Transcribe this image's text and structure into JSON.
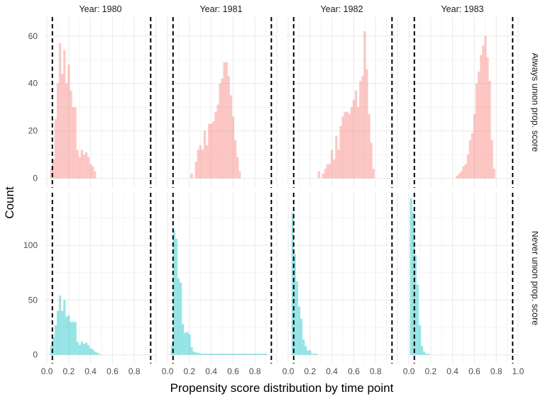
{
  "chart_data": {
    "type": "histogram",
    "xlabel": "Propensity score distribution by time point",
    "ylabel": "Count",
    "xlim": [
      -0.02,
      1.0
    ],
    "x_ticks": [
      0.0,
      0.2,
      0.4,
      0.6,
      0.8,
      1.0
    ],
    "x_tick_labels": [
      "0.0",
      "0.2",
      "0.4",
      "0.6",
      "0.8",
      "0.0",
      "0.2",
      "0.4",
      "0.6",
      "0.8",
      "0.0",
      "0.2",
      "0.4",
      "0.6",
      "0.8",
      "0.0",
      "0.2",
      "0.4",
      "0.6",
      "0.8",
      "1.0"
    ],
    "cutoff_lines": [
      0.05,
      0.95
    ],
    "grid": true,
    "bin_width": 0.02,
    "columns": [
      "Year: 1980",
      "Year: 1981",
      "Year: 1982",
      "Year: 1983"
    ],
    "rows": [
      {
        "label": "Always union prop. score",
        "color": "#f8766d",
        "ylim": [
          -4,
          68
        ],
        "y_ticks": [
          0,
          20,
          40,
          60
        ],
        "y_tick_labels": [
          "0",
          "20",
          "40",
          "60"
        ]
      },
      {
        "label": "Never union prop. score",
        "color": "#00bfc4",
        "ylim": [
          -8,
          148
        ],
        "y_ticks": [
          0,
          50,
          100
        ],
        "y_tick_labels": [
          "0",
          "50",
          "100"
        ]
      }
    ],
    "panels": [
      {
        "year": "1980",
        "row": "Always union prop. score",
        "x_start": 0.03,
        "counts": [
          4,
          8,
          25,
          40,
          57,
          44,
          54,
          40,
          48,
          37,
          30,
          30,
          12,
          9,
          12,
          10,
          11,
          9,
          6,
          5,
          3
        ]
      },
      {
        "year": "1980",
        "row": "Never union prop. score",
        "x_start": 0.03,
        "counts": [
          8,
          16,
          27,
          40,
          54,
          40,
          50,
          35,
          36,
          30,
          30,
          30,
          12,
          9,
          12,
          10,
          11,
          9,
          6,
          5,
          3,
          2,
          1
        ]
      },
      {
        "year": "1981",
        "row": "Always union prop. score",
        "x_start": 0.21,
        "counts": [
          2,
          0,
          7,
          12,
          14,
          12,
          20,
          14,
          23,
          23,
          24,
          28,
          31,
          40,
          42,
          49,
          49,
          43,
          35,
          26,
          16,
          9,
          3
        ]
      },
      {
        "year": "1981",
        "row": "Never union prop. score",
        "x_start": 0.03,
        "counts": [
          8,
          114,
          106,
          70,
          66,
          28,
          20,
          21,
          19,
          7,
          3,
          2,
          2,
          1,
          1,
          1,
          1,
          1,
          1,
          1,
          1,
          1,
          1,
          1,
          1,
          1,
          1,
          1,
          1,
          1,
          1,
          1,
          1,
          1,
          1,
          1,
          1,
          1,
          1,
          1,
          1,
          1,
          1,
          1
        ]
      },
      {
        "year": "1982",
        "row": "Always union prop. score",
        "x_start": 0.27,
        "counts": [
          3,
          0,
          2,
          4,
          6,
          6,
          12,
          8,
          18,
          12,
          22,
          26,
          28,
          28,
          27,
          30,
          33,
          37,
          30,
          41,
          43,
          62,
          46,
          27,
          15,
          4
        ]
      },
      {
        "year": "1982",
        "row": "Never union prop. score",
        "x_start": 0.03,
        "counts": [
          130,
          92,
          67,
          44,
          33,
          14,
          8,
          4,
          4,
          1,
          1,
          1
        ]
      },
      {
        "year": "1983",
        "row": "Always union prop. score",
        "x_start": 0.43,
        "counts": [
          1,
          2,
          3,
          5,
          6,
          10,
          16,
          19,
          27,
          40,
          45,
          52,
          56,
          60,
          51,
          41,
          16,
          4
        ]
      },
      {
        "year": "1983",
        "row": "Never union prop. score",
        "x_start": 0.01,
        "counts": [
          143,
          130,
          91,
          64,
          27,
          8,
          3,
          1,
          1
        ]
      }
    ]
  }
}
